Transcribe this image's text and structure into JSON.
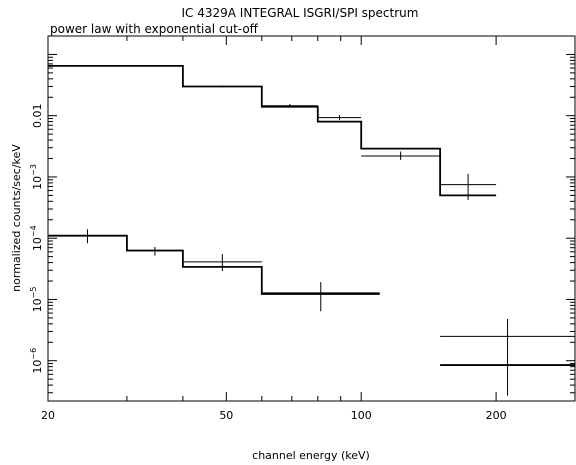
{
  "chart_data": {
    "type": "step",
    "title": "IC 4329A INTEGRAL ISGRI/SPI spectrum",
    "subtitle": "power law with exponential cut-off",
    "xlabel": "channel energy (keV)",
    "ylabel": "normalized counts/sec/keV",
    "x_scale": "log",
    "y_scale": "log",
    "xlim": [
      20,
      300
    ],
    "ylim": [
      2.2e-07,
      0.2
    ],
    "grid": false,
    "x_ticks": [
      {
        "value": 20,
        "label": "20"
      },
      {
        "value": 50,
        "label": "50"
      },
      {
        "value": 100,
        "label": "100"
      },
      {
        "value": 200,
        "label": "200"
      }
    ],
    "y_ticks": [
      {
        "value": 0.01,
        "label": "0.01",
        "base": "",
        "exp": ""
      },
      {
        "value": 0.001,
        "label": "",
        "base": "10",
        "exp": "−3"
      },
      {
        "value": 0.0001,
        "label": "",
        "base": "10",
        "exp": "−4"
      },
      {
        "value": 1e-05,
        "label": "",
        "base": "10",
        "exp": "−5"
      },
      {
        "value": 1e-06,
        "label": "",
        "base": "10",
        "exp": "−6"
      }
    ],
    "series": [
      {
        "bins": [
          {
            "x0": 20,
            "x1": 40,
            "data": 0.065,
            "model": 0.065,
            "err_lo": 0.065,
            "err_hi": 0.065
          },
          {
            "x0": 40,
            "x1": 60,
            "data": 0.03,
            "model": 0.03,
            "err_lo": 0.029,
            "err_hi": 0.031
          },
          {
            "x0": 60,
            "x1": 80,
            "data": 0.0145,
            "model": 0.014,
            "err_lo": 0.0135,
            "err_hi": 0.0155
          },
          {
            "x0": 80,
            "x1": 100,
            "data": 0.0093,
            "model": 0.008,
            "err_lo": 0.0085,
            "err_hi": 0.0102
          },
          {
            "x0": 100,
            "x1": 150,
            "data": 0.0022,
            "model": 0.0029,
            "err_lo": 0.0019,
            "err_hi": 0.0026
          },
          {
            "x0": 150,
            "x1": 200,
            "data": 0.00075,
            "model": 0.0005,
            "err_lo": 0.00042,
            "err_hi": 0.00112
          }
        ]
      },
      {
        "bins": [
          {
            "x0": 20,
            "x1": 30,
            "data": 0.00011,
            "model": 0.00011,
            "err_lo": 8.3e-05,
            "err_hi": 0.00014
          },
          {
            "x0": 30,
            "x1": 40,
            "data": 6.2e-05,
            "model": 6.3e-05,
            "err_lo": 5.2e-05,
            "err_hi": 7.2e-05
          },
          {
            "x0": 40,
            "x1": 60,
            "data": 4.1e-05,
            "model": 3.4e-05,
            "err_lo": 2.9e-05,
            "err_hi": 5.5e-05
          },
          {
            "x0": 60,
            "x1": 110,
            "data": 1.28e-05,
            "model": 1.23e-05,
            "err_lo": 6.4e-06,
            "err_hi": 1.92e-05
          },
          {
            "x0": 150,
            "x1": 300,
            "data": 2.5e-06,
            "model": 8.5e-07,
            "err_lo": 2.7e-07,
            "err_hi": 4.8e-06
          }
        ]
      }
    ]
  }
}
